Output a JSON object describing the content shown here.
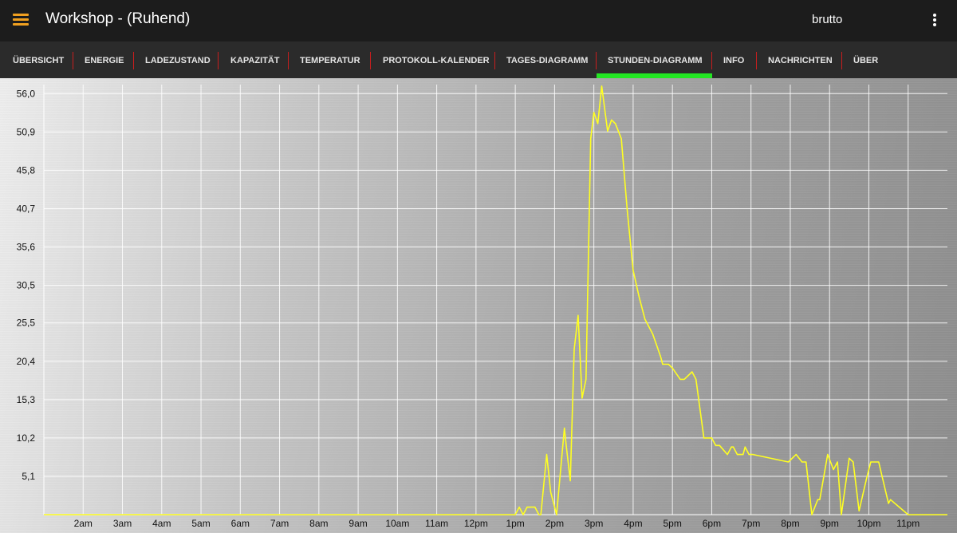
{
  "header": {
    "title": "Workshop - (Ruhend)",
    "mode": "brutto",
    "menu_icon": "hamburger-menu-icon",
    "overflow_icon": "more-vert-icon",
    "accent_color": "#f0a020"
  },
  "tabs": [
    {
      "label": "ÜBERSICHT"
    },
    {
      "label": "ENERGIE"
    },
    {
      "label": "LADEZUSTAND"
    },
    {
      "label": "KAPAZITÄT"
    },
    {
      "label": "TEMPERATUR"
    },
    {
      "label": "PROTOKOLL-KALENDER"
    },
    {
      "label": "TAGES-DIAGRAMM"
    },
    {
      "label": "STUNDEN-DIAGRAMM",
      "selected": true
    },
    {
      "label": "INFO"
    },
    {
      "label": "NACHRICHTEN"
    },
    {
      "label": "ÜBER"
    }
  ],
  "colors": {
    "tab_indicator": "#22e622",
    "tab_separator": "#c81e1e",
    "series_line": "#ffff22"
  },
  "chart_data": {
    "type": "line",
    "title": "",
    "xlabel": "",
    "ylabel": "",
    "y_ticks": [
      "5,1",
      "10,2",
      "15,3",
      "20,4",
      "25,5",
      "30,5",
      "35,6",
      "40,7",
      "45,8",
      "50,9",
      "56,0"
    ],
    "x_ticks": [
      "2am",
      "3am",
      "4am",
      "5am",
      "6am",
      "7am",
      "8am",
      "9am",
      "10am",
      "11am",
      "12pm",
      "1pm",
      "2pm",
      "3pm",
      "4pm",
      "5pm",
      "6pm",
      "7pm",
      "8pm",
      "9pm",
      "10pm",
      "11pm"
    ],
    "ylim": [
      0,
      57.2
    ],
    "xlim": [
      1.0,
      24.0
    ],
    "grid": true,
    "series": [
      {
        "x": [
          1.0,
          13.0,
          13.1,
          13.2,
          13.3,
          13.5,
          13.6,
          13.65,
          13.8,
          13.9,
          14.05,
          14.25,
          14.3,
          14.4,
          14.5,
          14.6,
          14.7,
          14.8,
          14.92,
          15.0,
          15.1,
          15.2,
          15.35,
          15.45,
          15.55,
          15.7,
          15.85,
          16.0,
          16.15,
          16.3,
          16.5,
          16.6,
          16.7,
          16.75,
          16.8,
          16.85,
          16.9,
          17.0,
          17.2,
          17.3,
          17.5,
          17.6,
          17.8,
          17.85,
          17.9,
          18.0,
          18.1,
          18.2,
          18.4,
          18.5,
          18.55,
          18.65,
          18.8,
          18.85,
          18.95,
          19.05,
          19.95,
          20.15,
          20.3,
          20.4,
          20.55,
          20.7,
          20.75,
          20.95,
          21.1,
          21.2,
          21.3,
          21.5,
          21.6,
          21.75,
          21.95,
          22.05,
          22.25,
          22.5,
          22.55,
          23.0,
          24.0
        ],
        "y": [
          0.0,
          0.0,
          1.0,
          0.0,
          1.0,
          1.0,
          0.0,
          0.0,
          8.0,
          3.0,
          0.0,
          11.5,
          9.0,
          4.5,
          22.0,
          26.5,
          15.5,
          18.0,
          50.0,
          53.5,
          52.0,
          57.0,
          51.0,
          52.5,
          52.0,
          50.0,
          40.5,
          32.5,
          29.0,
          26.0,
          24.0,
          22.5,
          21.0,
          20.0,
          20.0,
          20.0,
          20.0,
          19.5,
          18.0,
          18.0,
          19.0,
          18.0,
          10.2,
          10.2,
          10.2,
          10.2,
          9.2,
          9.2,
          8.0,
          9.0,
          9.0,
          8.0,
          8.0,
          9.0,
          8.0,
          8.0,
          7.0,
          8.0,
          7.0,
          7.0,
          0.0,
          2.0,
          2.0,
          8.0,
          6.0,
          7.0,
          0.0,
          7.5,
          7.0,
          0.5,
          5.0,
          7.0,
          7.0,
          1.5,
          2.0,
          0.0,
          0.0
        ]
      }
    ]
  }
}
